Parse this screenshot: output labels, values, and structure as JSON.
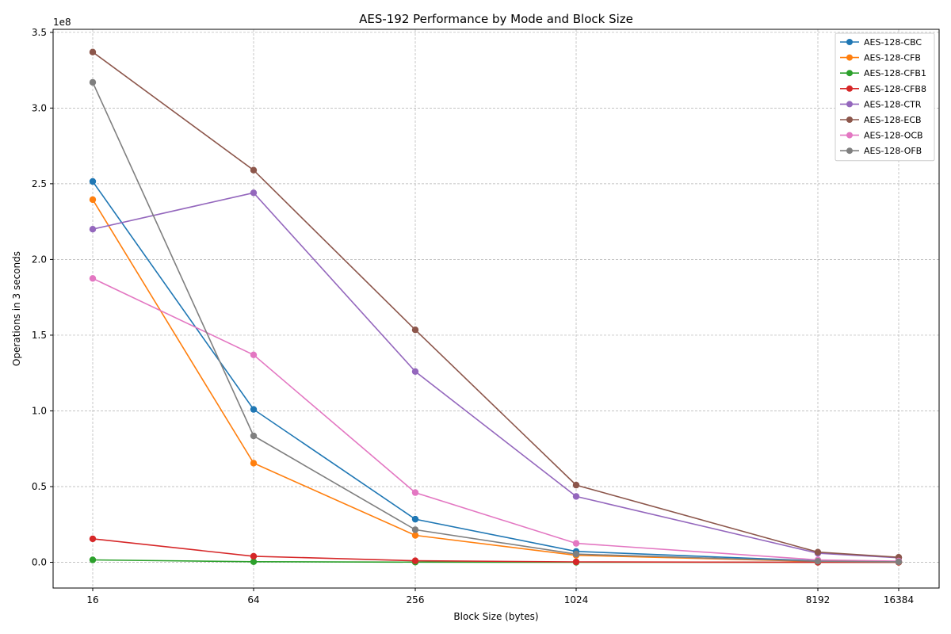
{
  "chart_data": {
    "type": "line",
    "title": "AES-192 Performance by Mode and Block Size",
    "xlabel": "Block Size (bytes)",
    "ylabel": "Operations in 3 seconds",
    "y_offset_text": "1e8",
    "x": [
      16,
      64,
      256,
      1024,
      8192,
      16384
    ],
    "x_tick_labels": [
      "16",
      "64",
      "256",
      "1024",
      "8192",
      "16384"
    ],
    "x_scale": "categorical-positions",
    "ylim": [
      -17000000,
      352000000
    ],
    "y_ticks": [
      0,
      50000000,
      100000000,
      150000000,
      200000000,
      250000000,
      300000000,
      350000000
    ],
    "y_tick_labels": [
      "0.0",
      "0.5",
      "1.0",
      "1.5",
      "2.0",
      "2.5",
      "3.0",
      "3.5"
    ],
    "grid": true,
    "legend_position": "top-right",
    "series": [
      {
        "name": "AES-128-CBC",
        "color": "#1f77b4",
        "values": [
          251500000,
          101000000,
          28500000,
          7200000,
          900000,
          450000
        ]
      },
      {
        "name": "AES-128-CFB",
        "color": "#ff7f0e",
        "values": [
          239500000,
          65500000,
          17800000,
          4600000,
          580000,
          290000
        ]
      },
      {
        "name": "AES-128-CFB1",
        "color": "#2ca02c",
        "values": [
          1600000,
          400000,
          100000,
          25000,
          3000,
          1500
        ]
      },
      {
        "name": "AES-128-CFB8",
        "color": "#d62728",
        "values": [
          15500000,
          4000000,
          1000000,
          250000,
          31000,
          15500
        ]
      },
      {
        "name": "AES-128-CTR",
        "color": "#9467bd",
        "values": [
          220000000,
          244000000,
          126000000,
          43500000,
          6000000,
          3000000
        ]
      },
      {
        "name": "AES-128-ECB",
        "color": "#8c564b",
        "values": [
          337000000,
          259000000,
          153500000,
          51000000,
          6700000,
          3300000
        ]
      },
      {
        "name": "AES-128-OCB",
        "color": "#e377c2",
        "values": [
          187500000,
          137000000,
          46000000,
          12500000,
          1600000,
          800000
        ]
      },
      {
        "name": "AES-128-OFB",
        "color": "#7f7f7f",
        "values": [
          317000000,
          83500000,
          21500000,
          5400000,
          700000,
          350000
        ]
      }
    ]
  }
}
